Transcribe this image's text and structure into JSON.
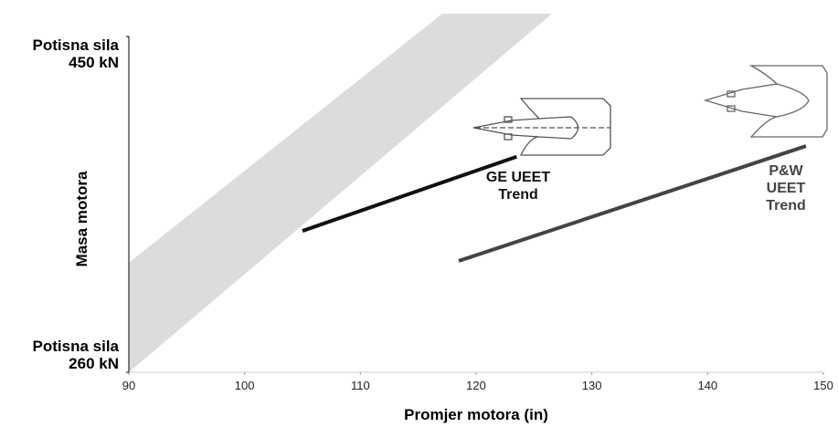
{
  "chart_data": {
    "type": "line",
    "x_label": "Promjer motora (in)",
    "y_label": "Masa motora",
    "xlim": [
      90,
      150
    ],
    "xticks": [
      90,
      100,
      110,
      120,
      130,
      140,
      150
    ],
    "ylim": [
      260,
      450
    ],
    "yticks": [
      {
        "value": 260,
        "label": "Potisna sila\n260 kN"
      },
      {
        "value": 450,
        "label": "Potisna sila\n450 kN"
      }
    ],
    "series": [
      {
        "name": "GE UEET\nTrend",
        "color": "#111111",
        "x": [
          105,
          123.5
        ],
        "values": [
          340,
          382
        ]
      },
      {
        "name": "P&W\nUEET\nTrend",
        "color": "#444444",
        "x": [
          118.5,
          148.5
        ],
        "values": [
          323,
          388
        ]
      }
    ]
  }
}
